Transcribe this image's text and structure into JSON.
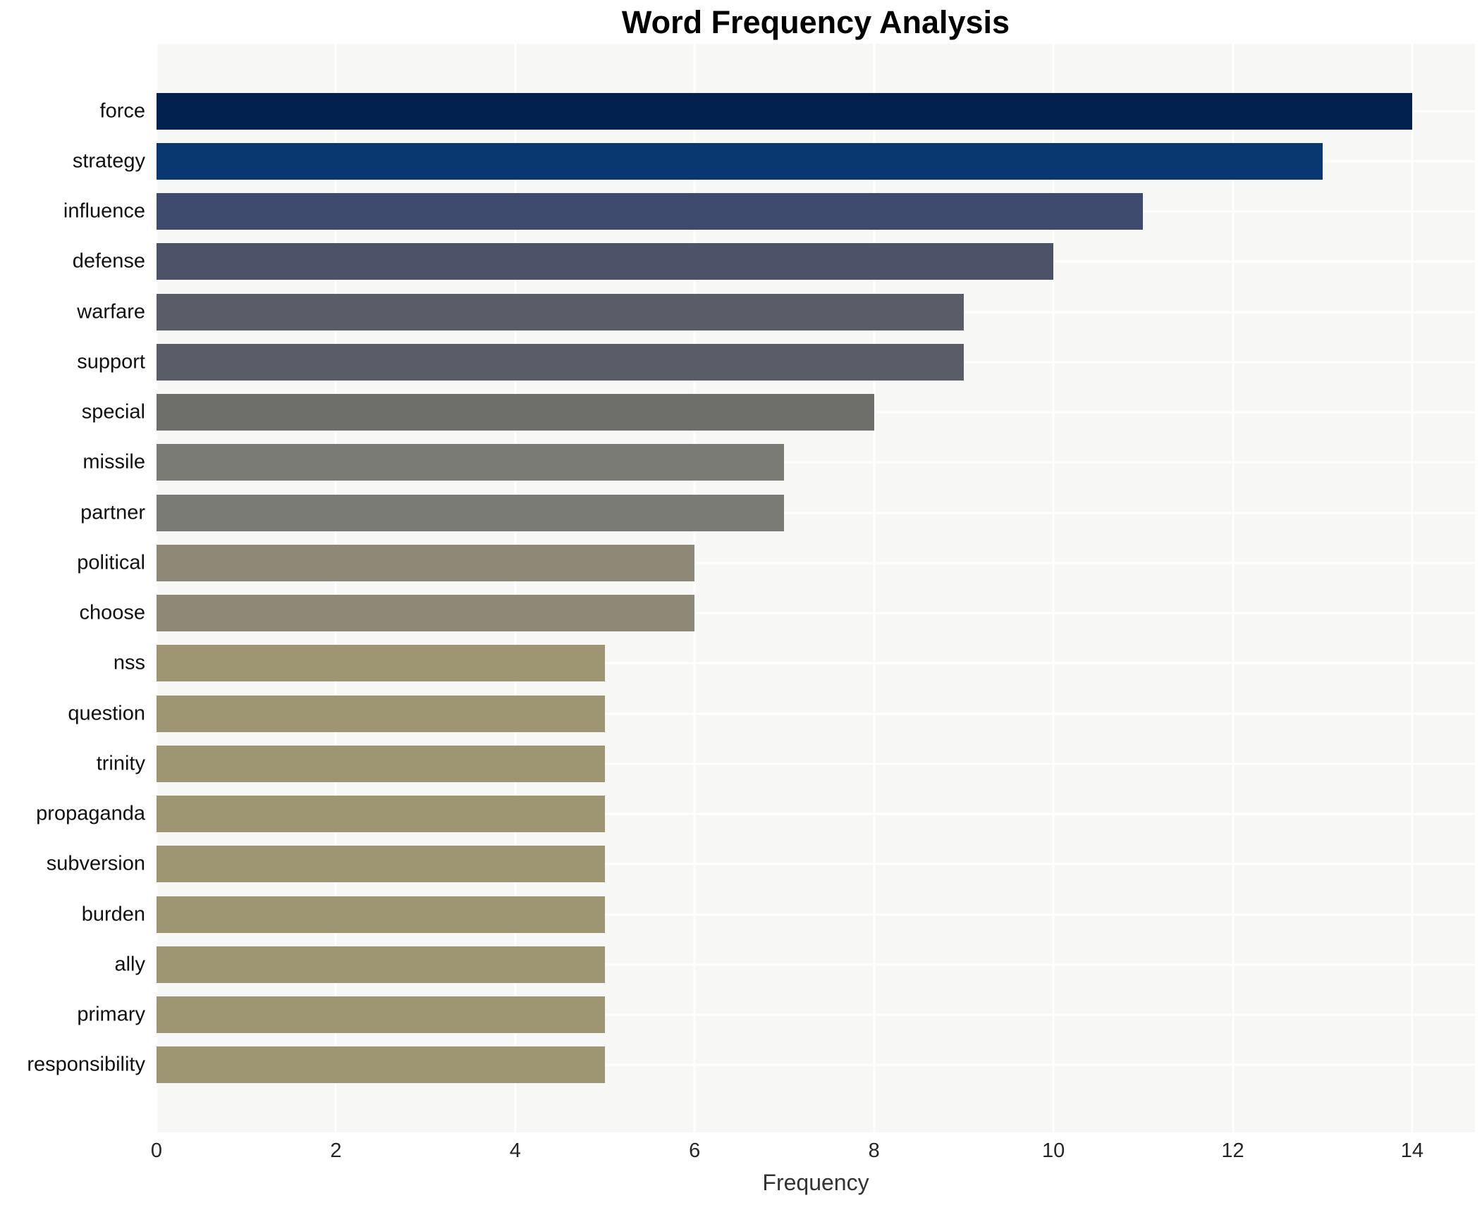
{
  "title": "Word Frequency Analysis",
  "chart_data": {
    "type": "bar",
    "orientation": "horizontal",
    "title": "Word Frequency Analysis",
    "xlabel": "Frequency",
    "ylabel": "",
    "categories": [
      "force",
      "strategy",
      "influence",
      "defense",
      "warfare",
      "support",
      "special",
      "missile",
      "partner",
      "political",
      "choose",
      "nss",
      "question",
      "trinity",
      "propaganda",
      "subversion",
      "burden",
      "ally",
      "primary",
      "responsibility"
    ],
    "values": [
      14,
      13,
      11,
      10,
      9,
      9,
      8,
      7,
      7,
      6,
      6,
      5,
      5,
      5,
      5,
      5,
      5,
      5,
      5,
      5
    ],
    "bar_colors": [
      "#03214e",
      "#09376f",
      "#3e4a6e",
      "#4c5268",
      "#5a5d67",
      "#5a5d67",
      "#6e6e6b",
      "#7b7b75",
      "#7b7b75",
      "#8e8977",
      "#8e8977",
      "#9e9672",
      "#9e9672",
      "#9e9672",
      "#9e9672",
      "#9e9672",
      "#9e9672",
      "#9e9672",
      "#9e9672",
      "#9e9672"
    ],
    "xlim": [
      0,
      14.7
    ],
    "xticks": [
      0,
      2,
      4,
      6,
      8,
      10,
      12,
      14
    ],
    "grid": true,
    "legend": false,
    "panel_background": "#f7f7f6",
    "gridline_color": "#ffffff",
    "figure_background": "#ffffff"
  }
}
